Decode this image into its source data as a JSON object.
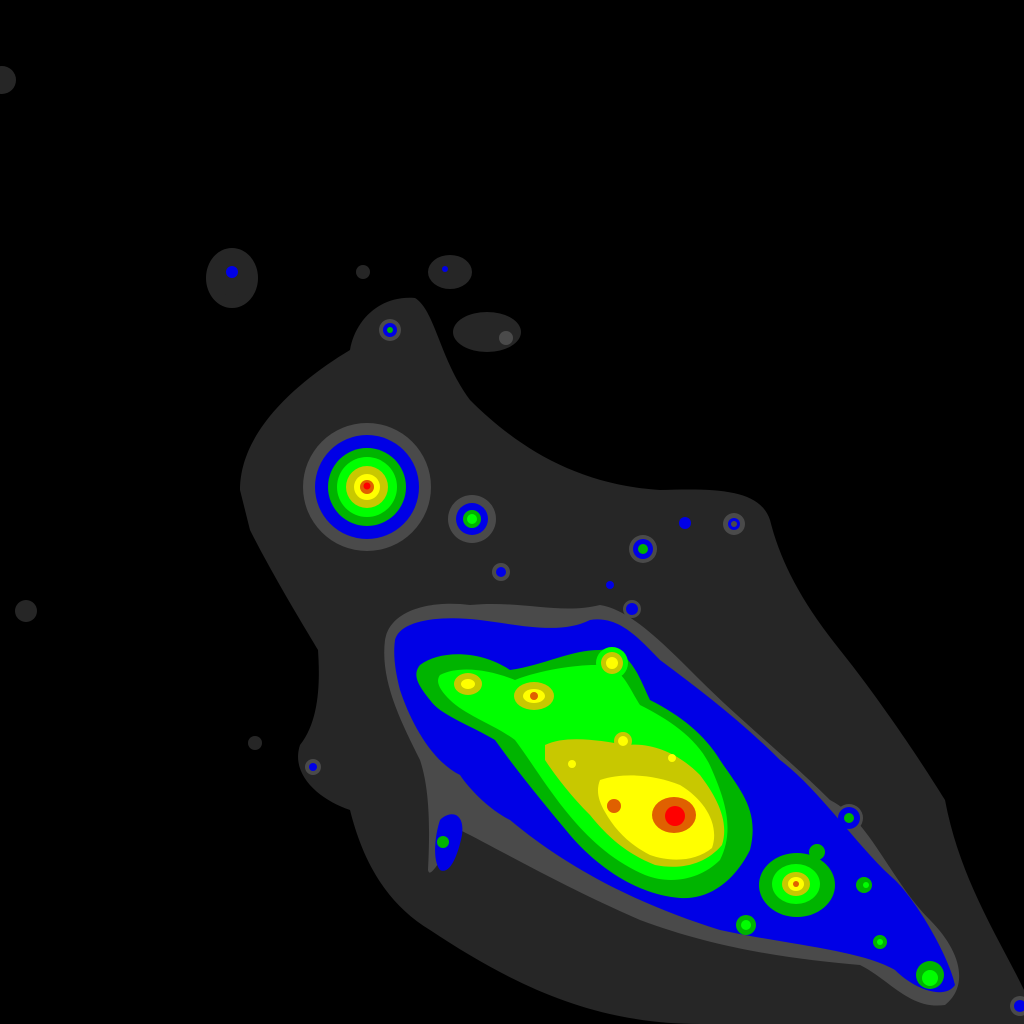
{
  "image": {
    "kind": "false-color contour intensity map",
    "background_color": "#000000",
    "contour_colors": {
      "level_1_halo": "#262626",
      "level_2": "#4a4a4a",
      "level_3": "#0000e6",
      "level_4": "#00b400",
      "level_5": "#00ff00",
      "level_6": "#c8c800",
      "level_7": "#ffff00",
      "level_8": "#e06000",
      "level_9_peak": "#ff0000"
    }
  }
}
